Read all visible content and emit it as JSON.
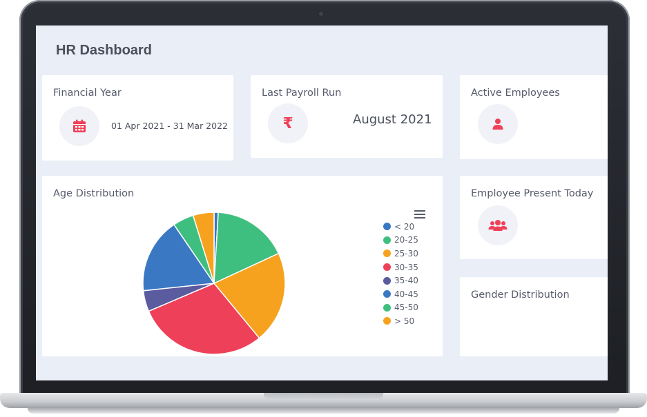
{
  "header": {
    "title": "HR Dashboard"
  },
  "cards": {
    "financial_year": {
      "title": "Financial Year",
      "value": "01 Apr 2021 - 31 Mar 2022",
      "icon": "calendar-icon"
    },
    "last_payroll": {
      "title": "Last Payroll Run",
      "value": "August 2021",
      "icon": "rupee-icon"
    },
    "active_employees": {
      "title": "Active Employees",
      "icon": "user-icon"
    },
    "present_today": {
      "title": "Employee Present Today",
      "icon": "users-group-icon"
    },
    "gender_distribution": {
      "title": "Gender Distribution"
    }
  },
  "colors": {
    "accent": "#ef4058",
    "background": "#e9eef7",
    "card": "#ffffff"
  },
  "chart_data": {
    "type": "pie",
    "title": "Age Distribution",
    "legend_position": "right",
    "slices": [
      {
        "label": "< 20",
        "value": 1,
        "color": "#3a78c4"
      },
      {
        "label": "20-25",
        "value": 18,
        "color": "#3fbf7f"
      },
      {
        "label": "25-30",
        "value": 22,
        "color": "#f7a21f"
      },
      {
        "label": "30-35",
        "value": 31,
        "color": "#ee4059"
      },
      {
        "label": "35-40",
        "value": 5,
        "color": "#5b5ba0"
      },
      {
        "label": "40-45",
        "value": 18,
        "color": "#3a78c4"
      },
      {
        "label": "45-50",
        "value": 5,
        "color": "#3fbf7f"
      },
      {
        "label": "> 50",
        "value": 5,
        "color": "#f7a21f"
      }
    ]
  }
}
